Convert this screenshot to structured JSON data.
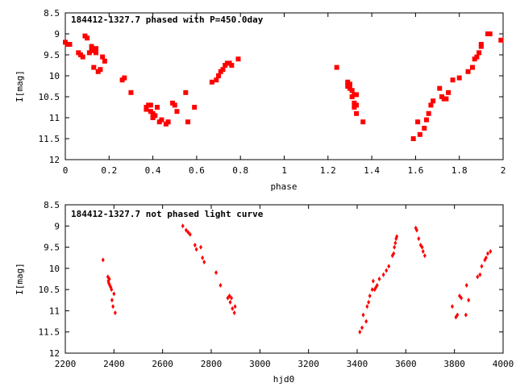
{
  "chart_data": [
    {
      "type": "scatter",
      "title": "184412-1327.7 phased with P=450.0day",
      "xlabel": "phase",
      "ylabel": "I[mag]",
      "xlim": [
        0,
        2
      ],
      "ylim": [
        12,
        8.5
      ],
      "y_inverted": true,
      "grid": false,
      "marker_color": "#ff0000",
      "marker": "square",
      "x_ticks": [
        "0",
        "0.2",
        "0.4",
        "0.6",
        "0.8",
        "1",
        "1.2",
        "1.4",
        "1.6",
        "1.8",
        "2"
      ],
      "y_ticks": [
        "8.5",
        "9",
        "9.5",
        "10",
        "10.5",
        "11",
        "11.5",
        "12"
      ],
      "series": [
        {
          "points": [
            [
              0.0,
              9.2
            ],
            [
              0.01,
              9.25
            ],
            [
              0.02,
              9.25
            ],
            [
              0.06,
              9.45
            ],
            [
              0.07,
              9.5
            ],
            [
              0.08,
              9.55
            ],
            [
              0.09,
              9.05
            ],
            [
              0.1,
              9.1
            ],
            [
              0.11,
              9.45
            ],
            [
              0.12,
              9.4
            ],
            [
              0.12,
              9.3
            ],
            [
              0.13,
              9.8
            ],
            [
              0.14,
              9.35
            ],
            [
              0.14,
              9.45
            ],
            [
              0.15,
              9.9
            ],
            [
              0.16,
              9.85
            ],
            [
              0.17,
              9.55
            ],
            [
              0.18,
              9.65
            ],
            [
              0.26,
              10.1
            ],
            [
              0.27,
              10.05
            ],
            [
              0.3,
              10.4
            ],
            [
              0.37,
              10.8
            ],
            [
              0.37,
              10.75
            ],
            [
              0.38,
              10.7
            ],
            [
              0.39,
              10.85
            ],
            [
              0.39,
              10.7
            ],
            [
              0.4,
              10.9
            ],
            [
              0.4,
              11.0
            ],
            [
              0.41,
              10.95
            ],
            [
              0.42,
              10.75
            ],
            [
              0.43,
              11.1
            ],
            [
              0.44,
              11.05
            ],
            [
              0.46,
              11.15
            ],
            [
              0.47,
              11.1
            ],
            [
              0.49,
              10.65
            ],
            [
              0.5,
              10.7
            ],
            [
              0.51,
              10.85
            ],
            [
              0.55,
              10.4
            ],
            [
              0.56,
              11.1
            ],
            [
              0.59,
              10.75
            ],
            [
              0.67,
              10.15
            ],
            [
              0.69,
              10.1
            ],
            [
              0.7,
              10.0
            ],
            [
              0.71,
              9.9
            ],
            [
              0.72,
              9.85
            ],
            [
              0.73,
              9.75
            ],
            [
              0.74,
              9.7
            ],
            [
              0.75,
              9.7
            ],
            [
              0.76,
              9.75
            ],
            [
              0.79,
              9.6
            ],
            [
              1.24,
              9.8
            ],
            [
              1.29,
              10.15
            ],
            [
              1.29,
              10.25
            ],
            [
              1.3,
              10.2
            ],
            [
              1.3,
              10.3
            ],
            [
              1.31,
              10.35
            ],
            [
              1.31,
              10.5
            ],
            [
              1.32,
              10.45
            ],
            [
              1.32,
              10.65
            ],
            [
              1.32,
              10.75
            ],
            [
              1.33,
              10.9
            ],
            [
              1.33,
              10.7
            ],
            [
              1.33,
              10.45
            ],
            [
              1.36,
              11.1
            ],
            [
              1.59,
              11.5
            ],
            [
              1.61,
              11.1
            ],
            [
              1.62,
              11.4
            ],
            [
              1.64,
              11.25
            ],
            [
              1.65,
              11.05
            ],
            [
              1.66,
              10.9
            ],
            [
              1.67,
              10.7
            ],
            [
              1.68,
              10.6
            ],
            [
              1.71,
              10.3
            ],
            [
              1.72,
              10.5
            ],
            [
              1.73,
              10.55
            ],
            [
              1.74,
              10.55
            ],
            [
              1.75,
              10.4
            ],
            [
              1.77,
              10.1
            ],
            [
              1.8,
              10.05
            ],
            [
              1.84,
              9.9
            ],
            [
              1.86,
              9.8
            ],
            [
              1.87,
              9.6
            ],
            [
              1.88,
              9.55
            ],
            [
              1.89,
              9.45
            ],
            [
              1.9,
              9.3
            ],
            [
              1.9,
              9.25
            ],
            [
              1.93,
              9.0
            ],
            [
              1.94,
              9.0
            ],
            [
              1.99,
              9.15
            ]
          ]
        }
      ]
    },
    {
      "type": "scatter",
      "title": "184412-1327.7 not phased light curve",
      "xlabel": "hjd0",
      "ylabel": "I[mag]",
      "xlim": [
        2200,
        4000
      ],
      "ylim": [
        12,
        8.5
      ],
      "y_inverted": true,
      "grid": false,
      "marker_color": "#ff0000",
      "marker": "diamond",
      "x_ticks": [
        "2200",
        "2400",
        "2600",
        "2800",
        "3000",
        "3200",
        "3400",
        "3600",
        "3800",
        "4000"
      ],
      "y_ticks": [
        "8.5",
        "9",
        "9.5",
        "10",
        "10.5",
        "11",
        "11.5",
        "12"
      ],
      "series": [
        {
          "points": [
            [
              2355,
              9.8
            ],
            [
              2375,
              10.2
            ],
            [
              2377,
              10.3
            ],
            [
              2379,
              10.35
            ],
            [
              2381,
              10.25
            ],
            [
              2383,
              10.4
            ],
            [
              2387,
              10.45
            ],
            [
              2390,
              10.5
            ],
            [
              2392,
              10.75
            ],
            [
              2396,
              10.9
            ],
            [
              2400,
              10.6
            ],
            [
              2405,
              11.05
            ],
            [
              2683,
              9.0
            ],
            [
              2697,
              9.1
            ],
            [
              2705,
              9.15
            ],
            [
              2713,
              9.2
            ],
            [
              2733,
              9.45
            ],
            [
              2739,
              9.55
            ],
            [
              2757,
              9.5
            ],
            [
              2764,
              9.75
            ],
            [
              2771,
              9.85
            ],
            [
              2820,
              10.1
            ],
            [
              2838,
              10.4
            ],
            [
              2868,
              10.7
            ],
            [
              2875,
              10.65
            ],
            [
              2878,
              10.8
            ],
            [
              2883,
              10.7
            ],
            [
              2887,
              10.95
            ],
            [
              2895,
              11.05
            ],
            [
              2898,
              10.9
            ],
            [
              3411,
              11.5
            ],
            [
              3420,
              11.4
            ],
            [
              3425,
              11.1
            ],
            [
              3437,
              11.25
            ],
            [
              3441,
              10.9
            ],
            [
              3447,
              10.8
            ],
            [
              3452,
              10.65
            ],
            [
              3462,
              10.5
            ],
            [
              3466,
              10.3
            ],
            [
              3472,
              10.5
            ],
            [
              3477,
              10.45
            ],
            [
              3482,
              10.4
            ],
            [
              3491,
              10.25
            ],
            [
              3508,
              10.15
            ],
            [
              3520,
              10.05
            ],
            [
              3530,
              9.95
            ],
            [
              3545,
              9.7
            ],
            [
              3550,
              9.65
            ],
            [
              3553,
              9.5
            ],
            [
              3557,
              9.4
            ],
            [
              3560,
              9.3
            ],
            [
              3563,
              9.25
            ],
            [
              3641,
              9.05
            ],
            [
              3645,
              9.1
            ],
            [
              3653,
              9.3
            ],
            [
              3661,
              9.45
            ],
            [
              3667,
              9.5
            ],
            [
              3671,
              9.6
            ],
            [
              3678,
              9.7
            ],
            [
              3791,
              10.9
            ],
            [
              3806,
              11.15
            ],
            [
              3812,
              11.1
            ],
            [
              3821,
              10.65
            ],
            [
              3828,
              10.7
            ],
            [
              3847,
              11.1
            ],
            [
              3850,
              10.4
            ],
            [
              3858,
              10.75
            ],
            [
              3895,
              10.2
            ],
            [
              3905,
              10.15
            ],
            [
              3912,
              9.95
            ],
            [
              3925,
              9.8
            ],
            [
              3930,
              9.75
            ],
            [
              3937,
              9.65
            ],
            [
              3948,
              9.6
            ]
          ]
        }
      ]
    }
  ]
}
